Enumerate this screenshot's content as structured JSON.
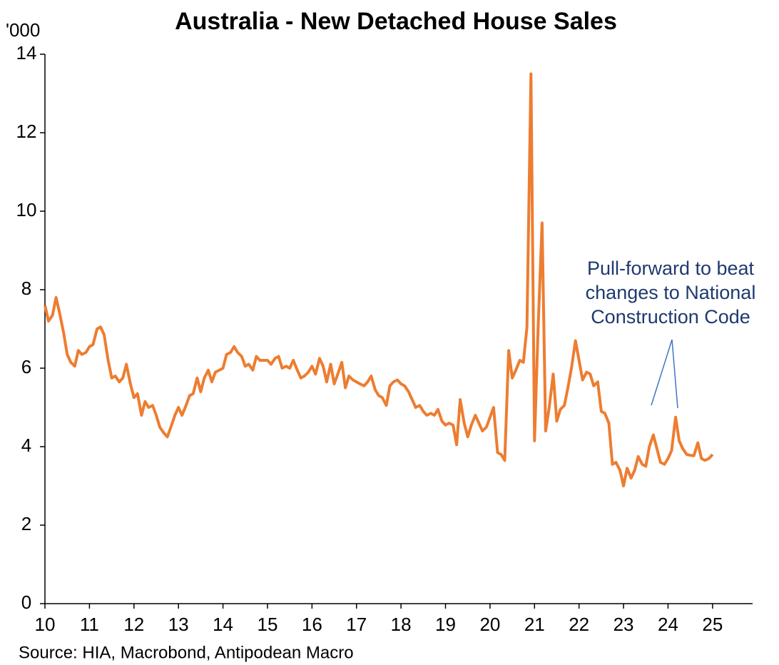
{
  "chart_data": {
    "type": "line",
    "title": "Australia - New Detached House Sales",
    "y_unit": "'000",
    "source": "Source: HIA, Macrobond, Antipodean Macro",
    "annotation": [
      "Pull-forward to beat",
      "changes to National",
      "Construction Code"
    ],
    "xlim": [
      10,
      25.9
    ],
    "xticks": [
      10,
      11,
      12,
      13,
      14,
      15,
      16,
      17,
      18,
      19,
      20,
      21,
      22,
      23,
      24,
      25
    ],
    "ylim": [
      0,
      14
    ],
    "yticks": [
      0,
      2,
      4,
      6,
      8,
      10,
      12,
      14
    ],
    "x": [
      10.0,
      10.08,
      10.17,
      10.25,
      10.33,
      10.42,
      10.5,
      10.58,
      10.67,
      10.75,
      10.83,
      10.92,
      11.0,
      11.08,
      11.17,
      11.25,
      11.33,
      11.42,
      11.5,
      11.58,
      11.67,
      11.75,
      11.83,
      11.92,
      12.0,
      12.08,
      12.17,
      12.25,
      12.33,
      12.42,
      12.5,
      12.58,
      12.67,
      12.75,
      12.83,
      12.92,
      13.0,
      13.08,
      13.17,
      13.25,
      13.33,
      13.42,
      13.5,
      13.58,
      13.67,
      13.75,
      13.83,
      13.92,
      14.0,
      14.08,
      14.17,
      14.25,
      14.33,
      14.42,
      14.5,
      14.58,
      14.67,
      14.75,
      14.83,
      14.92,
      15.0,
      15.08,
      15.17,
      15.25,
      15.33,
      15.42,
      15.5,
      15.58,
      15.67,
      15.75,
      15.83,
      15.92,
      16.0,
      16.08,
      16.17,
      16.25,
      16.33,
      16.42,
      16.5,
      16.58,
      16.67,
      16.75,
      16.83,
      16.92,
      17.0,
      17.08,
      17.17,
      17.25,
      17.33,
      17.42,
      17.5,
      17.58,
      17.67,
      17.75,
      17.83,
      17.92,
      18.0,
      18.08,
      18.17,
      18.25,
      18.33,
      18.42,
      18.5,
      18.58,
      18.67,
      18.75,
      18.83,
      18.92,
      19.0,
      19.08,
      19.17,
      19.25,
      19.33,
      19.42,
      19.5,
      19.58,
      19.67,
      19.75,
      19.83,
      19.92,
      20.0,
      20.08,
      20.17,
      20.25,
      20.33,
      20.42,
      20.5,
      20.58,
      20.67,
      20.75,
      20.83,
      20.92,
      21.0,
      21.08,
      21.17,
      21.25,
      21.33,
      21.42,
      21.5,
      21.58,
      21.67,
      21.75,
      21.83,
      21.92,
      22.0,
      22.08,
      22.17,
      22.25,
      22.33,
      22.42,
      22.5,
      22.58,
      22.67,
      22.75,
      22.83,
      22.92,
      23.0,
      23.08,
      23.17,
      23.25,
      23.33,
      23.42,
      23.5,
      23.58,
      23.67,
      23.75,
      23.83,
      23.92,
      24.0,
      24.08,
      24.17,
      24.25,
      24.33,
      24.42,
      24.5,
      24.58,
      24.67,
      24.75,
      24.83,
      24.92,
      25.0
    ],
    "series": [
      {
        "color": "#ed7d31",
        "values": [
          7.6,
          7.2,
          7.35,
          7.8,
          7.4,
          6.9,
          6.35,
          6.15,
          6.05,
          6.45,
          6.35,
          6.4,
          6.55,
          6.6,
          7.0,
          7.05,
          6.85,
          6.2,
          5.75,
          5.8,
          5.65,
          5.75,
          6.1,
          5.6,
          5.25,
          5.35,
          4.8,
          5.15,
          5.0,
          5.05,
          4.8,
          4.5,
          4.35,
          4.25,
          4.5,
          4.8,
          5.0,
          4.8,
          5.05,
          5.3,
          5.35,
          5.75,
          5.4,
          5.75,
          5.95,
          5.65,
          5.9,
          5.95,
          6.0,
          6.35,
          6.4,
          6.55,
          6.4,
          6.3,
          6.05,
          6.1,
          5.95,
          6.3,
          6.2,
          6.2,
          6.2,
          6.1,
          6.25,
          6.3,
          6.0,
          6.05,
          6.0,
          6.2,
          5.95,
          5.75,
          5.8,
          5.9,
          6.05,
          5.85,
          6.25,
          6.05,
          5.65,
          6.1,
          5.6,
          5.85,
          6.15,
          5.5,
          5.8,
          5.7,
          5.65,
          5.6,
          5.55,
          5.65,
          5.8,
          5.45,
          5.3,
          5.25,
          5.05,
          5.55,
          5.65,
          5.7,
          5.6,
          5.55,
          5.4,
          5.2,
          5.0,
          5.05,
          4.9,
          4.8,
          4.85,
          4.8,
          4.95,
          4.65,
          4.55,
          4.6,
          4.55,
          4.05,
          5.2,
          4.6,
          4.25,
          4.55,
          4.8,
          4.6,
          4.4,
          4.5,
          4.75,
          5.0,
          3.85,
          3.8,
          3.65,
          6.45,
          5.75,
          5.95,
          6.2,
          6.15,
          7.05,
          13.5,
          4.15,
          7.0,
          9.7,
          4.4,
          5.0,
          5.85,
          4.65,
          4.95,
          5.05,
          5.5,
          6.0,
          6.7,
          6.2,
          5.7,
          5.9,
          5.85,
          5.55,
          5.65,
          4.9,
          4.85,
          4.6,
          3.55,
          3.6,
          3.4,
          3.0,
          3.45,
          3.2,
          3.4,
          3.75,
          3.55,
          3.5,
          4.0,
          4.3,
          3.95,
          3.6,
          3.55,
          3.7,
          3.9,
          4.75,
          4.15,
          3.95,
          3.8,
          3.78,
          3.77,
          4.1,
          3.7,
          3.65,
          3.7,
          3.8
        ]
      }
    ]
  }
}
